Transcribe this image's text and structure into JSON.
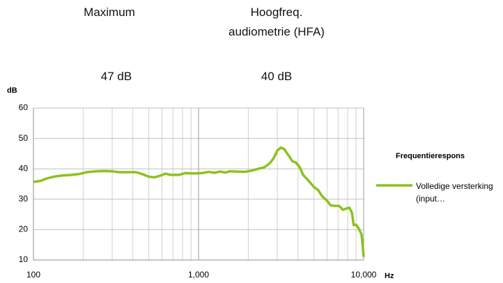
{
  "header": {
    "columns": [
      {
        "title": "Maximum",
        "value": "47 dB"
      },
      {
        "title": "Hoogfreq. audiometrie (HFA)",
        "value": "40 dB"
      }
    ]
  },
  "chart_data": {
    "type": "line",
    "y_label": "dB",
    "x_label": "Hz",
    "x": [
      100,
      110,
      120,
      130,
      140,
      150,
      170,
      190,
      210,
      240,
      270,
      300,
      330,
      380,
      420,
      460,
      500,
      540,
      590,
      630,
      680,
      760,
      830,
      900,
      980,
      1050,
      1150,
      1250,
      1350,
      1450,
      1550,
      1700,
      1900,
      2100,
      2300,
      2500,
      2700,
      2850,
      3000,
      3150,
      3300,
      3500,
      3700,
      3900,
      4100,
      4300,
      4600,
      5000,
      5300,
      5600,
      6000,
      6300,
      6700,
      7100,
      7500,
      7900,
      8200,
      8500,
      8700,
      9000,
      9300,
      9700,
      9850,
      10000
    ],
    "series": [
      {
        "name": "Volledige versterking (input…",
        "color": "#8cc11e",
        "values": [
          35.7,
          36,
          36.8,
          37.3,
          37.6,
          37.8,
          38,
          38.3,
          38.9,
          39.2,
          39.3,
          39.2,
          38.9,
          38.9,
          38.9,
          38.2,
          37.4,
          37.2,
          37.8,
          38.4,
          38,
          38,
          38.6,
          38.5,
          38.5,
          38.6,
          39,
          38.7,
          39.1,
          38.8,
          39.2,
          39.1,
          39,
          39.4,
          40,
          40.5,
          41.8,
          43.5,
          46,
          47,
          46.5,
          44.5,
          42.5,
          42,
          40.5,
          38,
          36.3,
          34,
          33,
          31,
          29.5,
          28,
          27.8,
          27.8,
          26.5,
          27,
          27.2,
          25.5,
          21.5,
          21.6,
          20.5,
          18.5,
          15,
          11
        ]
      }
    ],
    "legend_title": "Frequentierespons",
    "legend": "right",
    "xlim": [
      100,
      10000
    ],
    "xscale": "log",
    "xticks": [
      100,
      {
        "value": 1000,
        "label": "1,000"
      },
      {
        "value": 10000,
        "label": "10,000"
      }
    ],
    "xminorticks": [
      200,
      300,
      400,
      500,
      600,
      700,
      800,
      900,
      2000,
      3000,
      4000,
      5000,
      6000,
      7000,
      8000,
      9000
    ],
    "ylim": [
      10,
      60
    ],
    "yticks": [
      10,
      20,
      30,
      40,
      50,
      60
    ],
    "grid": true
  }
}
